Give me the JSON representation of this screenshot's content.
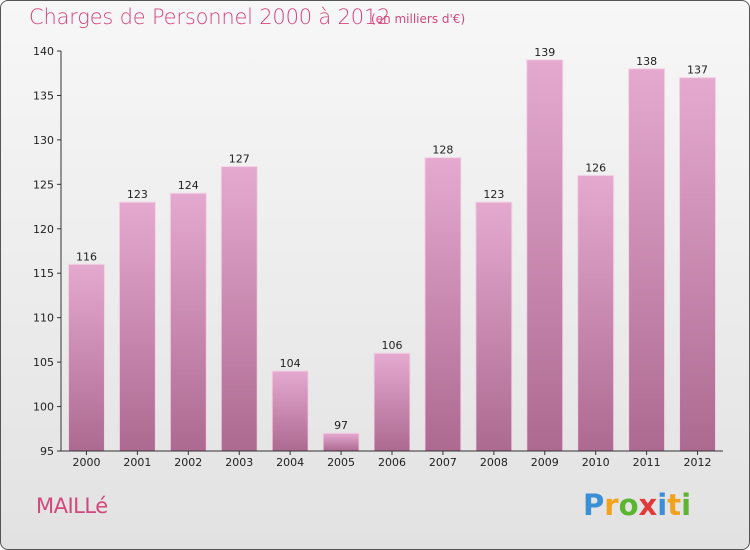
{
  "chart_data": {
    "type": "bar",
    "title": "Charges de Personnel 2000 à 2012",
    "subtitle": "(en milliers d'€)",
    "categories": [
      "2000",
      "2001",
      "2002",
      "2003",
      "2004",
      "2005",
      "2006",
      "2007",
      "2008",
      "2009",
      "2010",
      "2011",
      "2012"
    ],
    "values": [
      116,
      123,
      124,
      127,
      104,
      97,
      106,
      128,
      123,
      139,
      126,
      138,
      137
    ],
    "ylim": [
      95,
      140
    ],
    "yticks": [
      95,
      100,
      105,
      110,
      115,
      120,
      125,
      130,
      135,
      140
    ],
    "grid": false,
    "bar_color_top": "#e5a9cf",
    "bar_color_bottom": "#ad6a91"
  },
  "commune": "MAILLé",
  "logo": {
    "letters": [
      "P",
      "r",
      "o",
      "x",
      "i",
      "t",
      "i"
    ],
    "colors": [
      "#3b8fd6",
      "#f2a31c",
      "#5cb531",
      "#e03a3a",
      "#3b8fd6",
      "#f2a31c",
      "#5cb531"
    ]
  }
}
